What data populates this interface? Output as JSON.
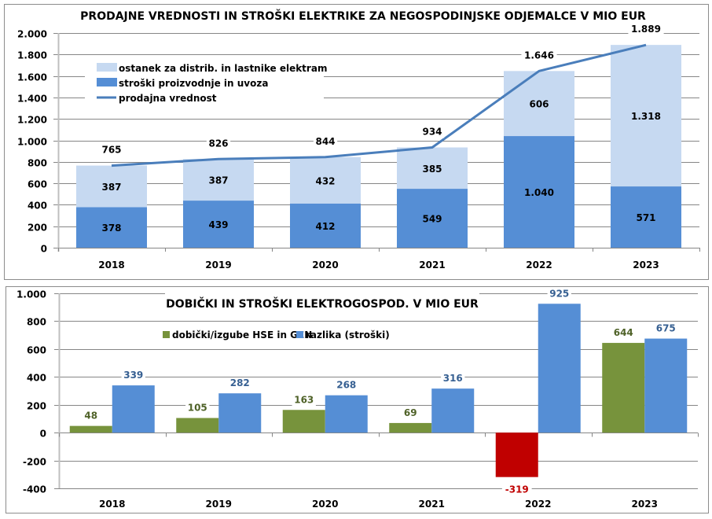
{
  "chart_data": [
    {
      "type": "bar",
      "subtype": "stacked-bar-with-line",
      "title": "PRODAJNE VREDNOSTI IN STROŠKI ELEKTRIKE  ZA NEGOSPODINJSKE ODJEMALCE V MIO EUR",
      "xlabel": "",
      "ylabel": "",
      "ylim": [
        0,
        2000
      ],
      "yticks": [
        0,
        200,
        400,
        600,
        800,
        1000,
        1200,
        1400,
        1600,
        1800,
        2000
      ],
      "ytick_labels": [
        "0",
        "200",
        "400",
        "600",
        "800",
        "1.000",
        "1.200",
        "1.400",
        "1.600",
        "1.800",
        "2.000"
      ],
      "grid": true,
      "legend_position": "top-left",
      "categories": [
        "2018",
        "2019",
        "2020",
        "2021",
        "2022",
        "2023"
      ],
      "series": [
        {
          "name": "stroški proizvodnje in uvoza",
          "kind": "bar",
          "color": "#558ED5",
          "values": [
            378,
            439,
            412,
            549,
            1040,
            571
          ],
          "labels": [
            "378",
            "439",
            "412",
            "549",
            "1.040",
            "571"
          ]
        },
        {
          "name": "ostanek za distrib. in lastnike elektram",
          "kind": "bar",
          "color": "#C6D9F1",
          "values": [
            387,
            387,
            432,
            385,
            606,
            1318
          ],
          "labels": [
            "387",
            "387",
            "432",
            "385",
            "606",
            "1.318"
          ]
        },
        {
          "name": "prodajna vrednost",
          "kind": "line",
          "color": "#4A7EBB",
          "values": [
            765,
            826,
            844,
            934,
            1646,
            1889
          ],
          "labels": [
            "765",
            "826",
            "844",
            "934",
            "1.646",
            "1.889"
          ]
        }
      ],
      "legend": [
        {
          "label": "ostanek za distrib. in lastnike elektram",
          "color": "#C6D9F1",
          "marker": "box"
        },
        {
          "label": "stroški proizvodnje in uvoza",
          "color": "#558ED5",
          "marker": "box"
        },
        {
          "label": "prodajna vrednost",
          "color": "#4A7EBB",
          "marker": "line"
        }
      ]
    },
    {
      "type": "bar",
      "subtype": "clustered-bar",
      "title": "DOBIČKI IN STROŠKI ELEKTROGOSPOD. V MIO EUR",
      "xlabel": "",
      "ylabel": "",
      "ylim": [
        -400,
        1000
      ],
      "yticks": [
        -400,
        -200,
        0,
        200,
        400,
        600,
        800,
        1000
      ],
      "ytick_labels": [
        "-400",
        "-200",
        "0",
        "200",
        "400",
        "600",
        "800",
        "1.000"
      ],
      "grid": true,
      "legend_position": "top-center",
      "categories": [
        "2018",
        "2019",
        "2020",
        "2021",
        "2022",
        "2023"
      ],
      "series": [
        {
          "name": "dobički/izgube HSE in GEN",
          "color": "#77933C",
          "negative_color": "#C00000",
          "label_color": "#4F6228",
          "negative_label_color": "#C00000",
          "values": [
            48,
            105,
            163,
            69,
            -319,
            644
          ],
          "labels": [
            "48",
            "105",
            "163",
            "69",
            "-319",
            "644"
          ]
        },
        {
          "name": "razlika (stroški)",
          "color": "#558ED5",
          "label_color": "#376092",
          "values": [
            339,
            282,
            268,
            316,
            925,
            675
          ],
          "labels": [
            "339",
            "282",
            "268",
            "316",
            "925",
            "675"
          ]
        }
      ],
      "legend": [
        {
          "label": "dobički/izgube HSE in GEN",
          "color": "#77933C"
        },
        {
          "label": "razlika (stroški)",
          "color": "#558ED5"
        }
      ]
    }
  ]
}
